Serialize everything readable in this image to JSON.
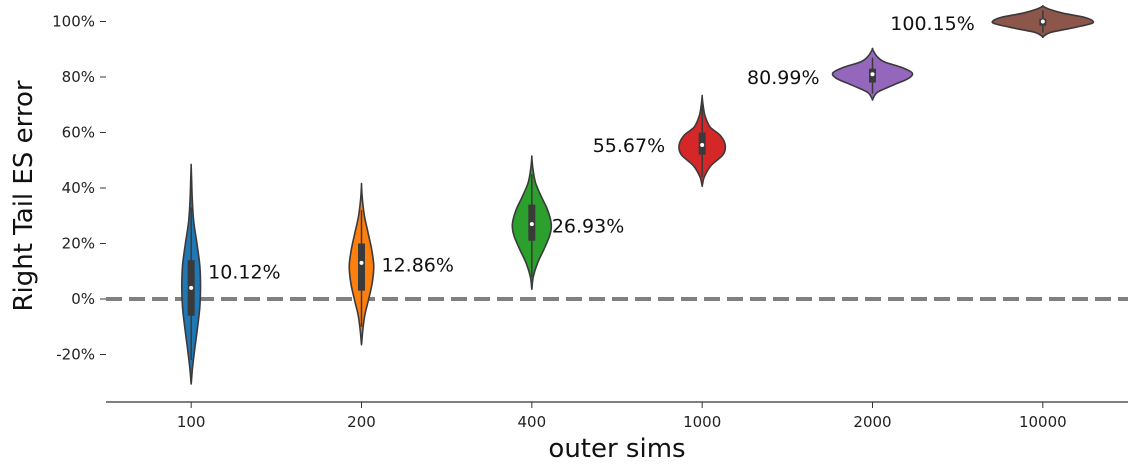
{
  "chart_data": {
    "type": "violin",
    "xlabel": "outer sims",
    "ylabel": "Right Tail ES error",
    "categories": [
      "100",
      "200",
      "400",
      "1000",
      "2000",
      "10000"
    ],
    "ylim": [
      -0.37,
      1.06
    ],
    "yticks": [
      -0.2,
      0,
      0.2,
      0.4,
      0.6,
      0.8,
      1.0
    ],
    "ytick_labels": [
      "-20%",
      "0%",
      "20%",
      "40%",
      "60%",
      "80%",
      "100%"
    ],
    "reference_line": {
      "y": 0,
      "style": "dashed",
      "color": "#808080"
    },
    "violins": [
      {
        "category": "100",
        "color": "#1f77b4",
        "min": -0.3,
        "max": 0.48,
        "q1": -0.06,
        "median": 0.04,
        "q3": 0.14,
        "whisker_low": -0.22,
        "whisker_high": 0.33,
        "mean_label": "10.12%",
        "profile": [
          [
            -0.3,
            0.002
          ],
          [
            -0.25,
            0.018
          ],
          [
            -0.18,
            0.05
          ],
          [
            -0.1,
            0.09
          ],
          [
            -0.03,
            0.12
          ],
          [
            0.04,
            0.13
          ],
          [
            0.12,
            0.12
          ],
          [
            0.2,
            0.08
          ],
          [
            0.28,
            0.035
          ],
          [
            0.36,
            0.015
          ],
          [
            0.44,
            0.005
          ],
          [
            0.48,
            0.0
          ]
        ]
      },
      {
        "category": "200",
        "color": "#ff7f0e",
        "min": -0.16,
        "max": 0.41,
        "q1": 0.03,
        "median": 0.13,
        "q3": 0.2,
        "whisker_low": -0.1,
        "whisker_high": 0.32,
        "mean_label": "12.86%",
        "profile": [
          [
            -0.16,
            0.002
          ],
          [
            -0.12,
            0.015
          ],
          [
            -0.06,
            0.045
          ],
          [
            0.0,
            0.1
          ],
          [
            0.06,
            0.15
          ],
          [
            0.12,
            0.17
          ],
          [
            0.18,
            0.14
          ],
          [
            0.24,
            0.09
          ],
          [
            0.3,
            0.04
          ],
          [
            0.36,
            0.012
          ],
          [
            0.41,
            0.0
          ]
        ]
      },
      {
        "category": "400",
        "color": "#2ca02c",
        "min": 0.04,
        "max": 0.51,
        "q1": 0.21,
        "median": 0.27,
        "q3": 0.34,
        "whisker_low": 0.08,
        "whisker_high": 0.45,
        "mean_label": "26.93%",
        "profile": [
          [
            0.04,
            0.002
          ],
          [
            0.08,
            0.02
          ],
          [
            0.13,
            0.08
          ],
          [
            0.18,
            0.17
          ],
          [
            0.23,
            0.25
          ],
          [
            0.27,
            0.27
          ],
          [
            0.32,
            0.22
          ],
          [
            0.37,
            0.13
          ],
          [
            0.42,
            0.05
          ],
          [
            0.47,
            0.015
          ],
          [
            0.51,
            0.0
          ]
        ]
      },
      {
        "category": "1000",
        "color": "#d62728",
        "min": 0.41,
        "max": 0.73,
        "q1": 0.52,
        "median": 0.555,
        "q3": 0.6,
        "whisker_low": 0.44,
        "whisker_high": 0.7,
        "mean_label": "55.67%",
        "profile": [
          [
            0.41,
            0.002
          ],
          [
            0.44,
            0.03
          ],
          [
            0.48,
            0.12
          ],
          [
            0.52,
            0.29
          ],
          [
            0.555,
            0.32
          ],
          [
            0.59,
            0.25
          ],
          [
            0.62,
            0.11
          ],
          [
            0.66,
            0.04
          ],
          [
            0.7,
            0.012
          ],
          [
            0.73,
            0.0
          ]
        ]
      },
      {
        "category": "2000",
        "color": "#9467bd",
        "min": 0.72,
        "max": 0.9,
        "q1": 0.78,
        "median": 0.81,
        "q3": 0.83,
        "whisker_low": 0.74,
        "whisker_high": 0.87,
        "mean_label": "80.99%",
        "profile": [
          [
            0.72,
            0.002
          ],
          [
            0.745,
            0.07
          ],
          [
            0.77,
            0.28
          ],
          [
            0.795,
            0.5
          ],
          [
            0.815,
            0.55
          ],
          [
            0.835,
            0.4
          ],
          [
            0.855,
            0.16
          ],
          [
            0.875,
            0.06
          ],
          [
            0.9,
            0.0
          ]
        ]
      },
      {
        "category": "10000",
        "color": "#8c564b",
        "min": 0.945,
        "max": 1.055,
        "q1": 0.985,
        "median": 1.0,
        "q3": 1.01,
        "whisker_low": 0.96,
        "whisker_high": 1.04,
        "mean_label": "100.15%",
        "profile": [
          [
            0.945,
            0.002
          ],
          [
            0.96,
            0.1
          ],
          [
            0.975,
            0.38
          ],
          [
            0.99,
            0.64
          ],
          [
            1.0,
            0.7
          ],
          [
            1.015,
            0.58
          ],
          [
            1.03,
            0.28
          ],
          [
            1.045,
            0.08
          ],
          [
            1.055,
            0.0
          ]
        ]
      }
    ],
    "grid": false,
    "legend": "none"
  }
}
